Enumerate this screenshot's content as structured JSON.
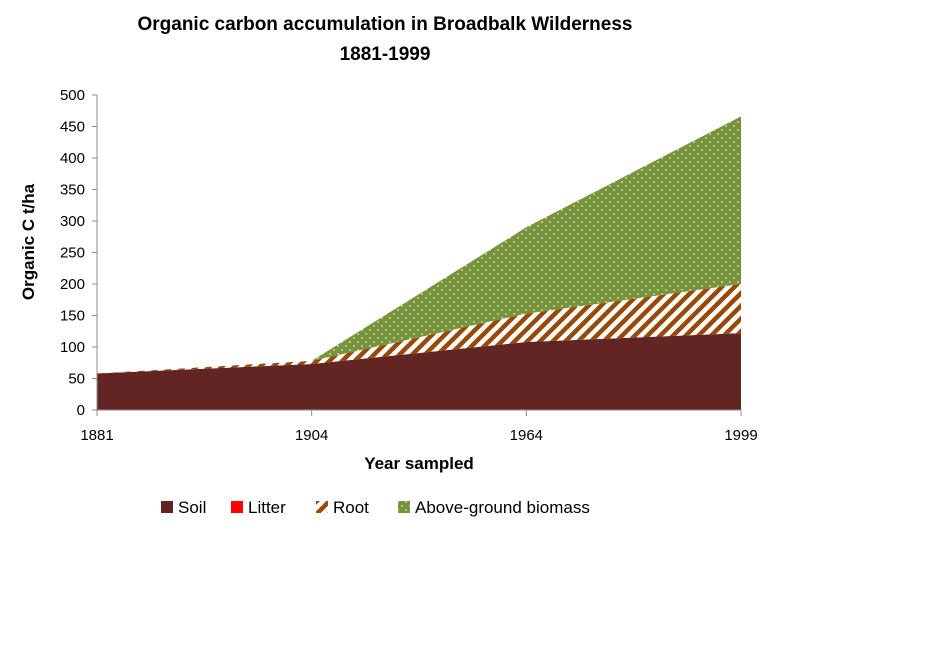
{
  "chart_data": {
    "type": "area",
    "stacked": true,
    "title_line1": "Organic carbon accumulation in Broadbalk Wilderness",
    "title_line2": "1881-1999",
    "xlabel": "Year sampled",
    "ylabel": "Organic C t/ha",
    "categories": [
      "1881",
      "1904",
      "1964",
      "1999"
    ],
    "ylim": [
      0,
      500
    ],
    "yticks": [
      0,
      50,
      100,
      150,
      200,
      250,
      300,
      350,
      400,
      450,
      500
    ],
    "grid": false,
    "legend_position": "bottom",
    "series": [
      {
        "name": "Soil",
        "values": [
          58,
          73,
          108,
          122
        ],
        "color": "#632523",
        "fill": "solid"
      },
      {
        "name": "Litter",
        "values": [
          0,
          0,
          0,
          0
        ],
        "color": "#ff0000",
        "fill": "solid"
      },
      {
        "name": "Root",
        "values": [
          0,
          5,
          45,
          78
        ],
        "color": "#984807",
        "fill": "diagonal-stripes"
      },
      {
        "name": "Above-ground biomass",
        "values": [
          0,
          0,
          137,
          266
        ],
        "color": "#77933c",
        "fill": "dotted"
      }
    ]
  }
}
